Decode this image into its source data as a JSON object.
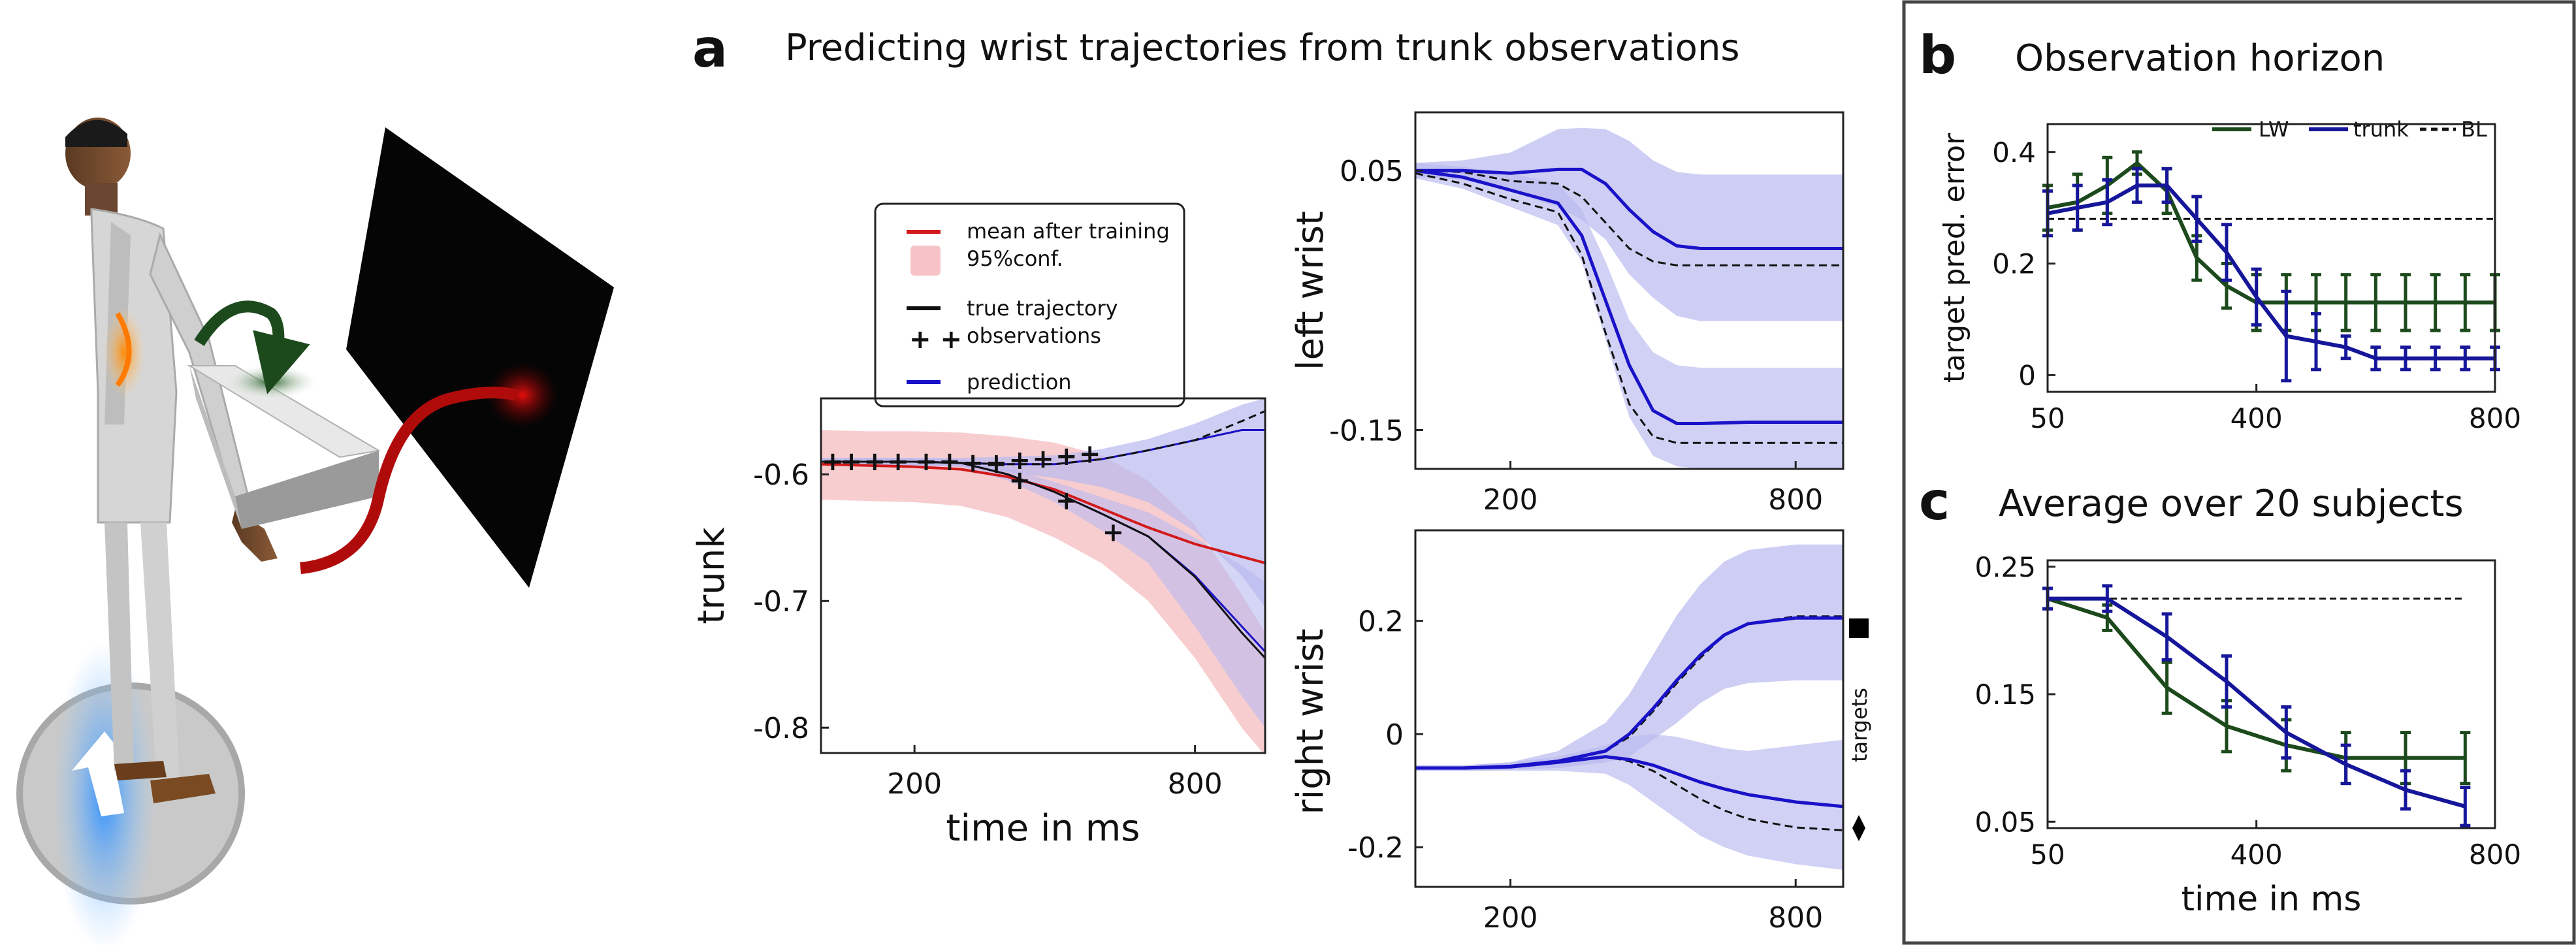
{
  "colors": {
    "prediction": "#1a12c8",
    "prediction_band": "#b9b9ef",
    "prior_mean": "#d21a1a",
    "prior_band": "#f6c4c8",
    "true": "#111111",
    "lw": "#1c4a1c",
    "trunk_series": "#16169a"
  },
  "panel_a": {
    "letter": "a",
    "title": "Predicting wrist trajectories from trunk observations",
    "legend": {
      "mean": "mean after training",
      "conf": "95%conf.",
      "true": "true trajectory",
      "obs": "observations",
      "pred": "prediction"
    },
    "targets_label": "targets"
  },
  "panel_b": {
    "letter": "b",
    "title": "Observation horizon",
    "ylabel": "target pred. error",
    "legend": [
      "LW",
      "trunk",
      "BL"
    ]
  },
  "panel_c": {
    "letter": "c",
    "title": "Average over 20 subjects",
    "xlabel": "time in ms"
  },
  "chart_data": [
    {
      "id": "trunk",
      "type": "line",
      "xlabel": "time in ms",
      "ylabel": "trunk",
      "xlim": [
        0,
        950
      ],
      "ylim": [
        -0.82,
        -0.54
      ],
      "xticks": [
        200,
        800
      ],
      "yticks": [
        -0.6,
        -0.7,
        -0.8
      ],
      "x": [
        0,
        100,
        200,
        300,
        400,
        500,
        600,
        700,
        800,
        900,
        950
      ],
      "series": [
        {
          "role": "prior_mean",
          "values": [
            -0.592,
            -0.593,
            -0.594,
            -0.596,
            -0.602,
            -0.612,
            -0.627,
            -0.642,
            -0.655,
            -0.665,
            -0.67
          ]
        },
        {
          "role": "prior_band_upper",
          "values": [
            -0.565,
            -0.566,
            -0.566,
            -0.567,
            -0.57,
            -0.575,
            -0.585,
            -0.605,
            -0.64,
            -0.695,
            -0.725
          ]
        },
        {
          "role": "prior_band_lower",
          "values": [
            -0.62,
            -0.621,
            -0.622,
            -0.625,
            -0.634,
            -0.65,
            -0.67,
            -0.7,
            -0.745,
            -0.8,
            -0.822
          ]
        },
        {
          "role": "true_upper",
          "values": [
            -0.59,
            -0.59,
            -0.59,
            -0.591,
            -0.592,
            -0.592,
            -0.588,
            -0.581,
            -0.573,
            -0.558,
            -0.55
          ]
        },
        {
          "role": "true_lower",
          "values": [
            -0.59,
            -0.59,
            -0.59,
            -0.591,
            -0.6,
            -0.614,
            -0.631,
            -0.649,
            -0.681,
            -0.725,
            -0.745
          ]
        },
        {
          "role": "pred_upper",
          "values": [
            -0.59,
            -0.59,
            -0.59,
            -0.591,
            -0.592,
            -0.592,
            -0.588,
            -0.581,
            -0.573,
            -0.565,
            -0.565
          ]
        },
        {
          "role": "pred_upper_band_hi",
          "values": [
            -0.587,
            -0.587,
            -0.587,
            -0.587,
            -0.586,
            -0.585,
            -0.58,
            -0.572,
            -0.56,
            -0.545,
            -0.54
          ]
        },
        {
          "role": "pred_upper_band_lo",
          "values": [
            -0.593,
            -0.593,
            -0.593,
            -0.594,
            -0.598,
            -0.603,
            -0.61,
            -0.622,
            -0.645,
            -0.68,
            -0.705
          ]
        },
        {
          "role": "pred_lower",
          "values": [
            -0.59,
            -0.59,
            -0.59,
            -0.591,
            -0.6,
            -0.614,
            -0.631,
            -0.649,
            -0.68,
            -0.72,
            -0.74
          ]
        },
        {
          "role": "pred_lower_band_hi",
          "values": [
            -0.587,
            -0.587,
            -0.587,
            -0.588,
            -0.595,
            -0.606,
            -0.618,
            -0.63,
            -0.65,
            -0.672,
            -0.685
          ]
        },
        {
          "role": "pred_lower_band_lo",
          "values": [
            -0.593,
            -0.593,
            -0.593,
            -0.594,
            -0.605,
            -0.622,
            -0.644,
            -0.67,
            -0.72,
            -0.775,
            -0.8
          ]
        }
      ],
      "observations": [
        {
          "x": [
            25,
            65,
            115,
            165,
            225,
            275,
            325,
            375,
            425,
            475,
            525,
            575
          ],
          "y": [
            -0.59,
            -0.59,
            -0.59,
            -0.59,
            -0.59,
            -0.59,
            -0.591,
            -0.591,
            -0.589,
            -0.588,
            -0.586,
            -0.584
          ]
        },
        {
          "x": [
            25,
            65,
            115,
            165,
            225,
            275,
            325,
            375,
            425,
            525,
            625
          ],
          "y": [
            -0.59,
            -0.59,
            -0.59,
            -0.59,
            -0.59,
            -0.59,
            -0.591,
            -0.592,
            -0.605,
            -0.621,
            -0.646
          ]
        }
      ]
    },
    {
      "id": "left_wrist",
      "type": "line",
      "ylabel": "left wrist",
      "xlim": [
        0,
        900
      ],
      "ylim": [
        -0.18,
        0.095
      ],
      "xticks": [
        200,
        800
      ],
      "yticks": [
        0.05,
        -0.15
      ],
      "yticklabels": [
        "0.05",
        "-0.15"
      ],
      "x": [
        0,
        100,
        200,
        300,
        350,
        400,
        450,
        500,
        550,
        600,
        700,
        800,
        900
      ],
      "series": [
        {
          "role": "pred_upper",
          "values": [
            0.05,
            0.05,
            0.048,
            0.051,
            0.051,
            0.04,
            0.02,
            0.003,
            -0.008,
            -0.01,
            -0.01,
            -0.01,
            -0.01
          ]
        },
        {
          "role": "pred_upper_band_hi",
          "values": [
            0.056,
            0.058,
            0.064,
            0.082,
            0.083,
            0.082,
            0.073,
            0.058,
            0.049,
            0.047,
            0.047,
            0.047,
            0.047
          ]
        },
        {
          "role": "pred_upper_band_lo",
          "values": [
            0.045,
            0.043,
            0.034,
            0.022,
            0.012,
            -0.003,
            -0.03,
            -0.048,
            -0.062,
            -0.066,
            -0.066,
            -0.066,
            -0.066
          ]
        },
        {
          "role": "true_upper",
          "values": [
            0.05,
            0.049,
            0.042,
            0.04,
            0.03,
            0.01,
            -0.01,
            -0.02,
            -0.023,
            -0.023,
            -0.023,
            -0.023,
            -0.023
          ]
        },
        {
          "role": "pred_lower",
          "values": [
            0.05,
            0.045,
            0.035,
            0.025,
            0.0,
            -0.05,
            -0.1,
            -0.135,
            -0.145,
            -0.145,
            -0.144,
            -0.144,
            -0.144
          ]
        },
        {
          "role": "pred_lower_band_hi",
          "values": [
            0.056,
            0.053,
            0.048,
            0.04,
            0.02,
            -0.02,
            -0.065,
            -0.09,
            -0.1,
            -0.102,
            -0.102,
            -0.102,
            -0.102
          ]
        },
        {
          "role": "pred_lower_band_lo",
          "values": [
            0.044,
            0.036,
            0.022,
            0.008,
            -0.02,
            -0.08,
            -0.14,
            -0.17,
            -0.178,
            -0.18,
            -0.18,
            -0.18,
            -0.18
          ]
        },
        {
          "role": "true_lower",
          "values": [
            0.048,
            0.04,
            0.028,
            0.018,
            -0.015,
            -0.075,
            -0.13,
            -0.155,
            -0.16,
            -0.16,
            -0.16,
            -0.16,
            -0.16
          ]
        }
      ]
    },
    {
      "id": "right_wrist",
      "type": "line",
      "xlabel": "",
      "ylabel": "right wrist",
      "xlim": [
        0,
        900
      ],
      "ylim": [
        -0.27,
        0.36
      ],
      "xticks": [
        200,
        800
      ],
      "yticks": [
        0.2,
        0,
        -0.2
      ],
      "x": [
        0,
        100,
        200,
        300,
        400,
        450,
        500,
        550,
        600,
        650,
        700,
        800,
        900
      ],
      "series": [
        {
          "role": "pred_upper",
          "values": [
            -0.06,
            -0.06,
            -0.057,
            -0.048,
            -0.03,
            0.0,
            0.045,
            0.095,
            0.14,
            0.175,
            0.195,
            0.205,
            0.205
          ]
        },
        {
          "role": "pred_upper_band_hi",
          "values": [
            -0.055,
            -0.055,
            -0.05,
            -0.03,
            0.02,
            0.07,
            0.14,
            0.21,
            0.265,
            0.305,
            0.325,
            0.335,
            0.335
          ]
        },
        {
          "role": "pred_upper_band_lo",
          "values": [
            -0.065,
            -0.065,
            -0.063,
            -0.06,
            -0.05,
            -0.04,
            -0.01,
            0.02,
            0.055,
            0.08,
            0.09,
            0.095,
            0.095
          ]
        },
        {
          "role": "true_upper",
          "values": [
            -0.06,
            -0.06,
            -0.058,
            -0.05,
            -0.03,
            -0.005,
            0.04,
            0.09,
            0.135,
            0.175,
            0.195,
            0.208,
            0.208
          ]
        },
        {
          "role": "pred_lower",
          "values": [
            -0.06,
            -0.06,
            -0.058,
            -0.05,
            -0.04,
            -0.045,
            -0.055,
            -0.07,
            -0.085,
            -0.097,
            -0.107,
            -0.12,
            -0.128
          ]
        },
        {
          "role": "pred_lower_band_hi",
          "values": [
            -0.055,
            -0.055,
            -0.05,
            -0.04,
            -0.02,
            -0.005,
            0.0,
            -0.005,
            -0.015,
            -0.025,
            -0.03,
            -0.02,
            -0.01
          ]
        },
        {
          "role": "pred_lower_band_lo",
          "values": [
            -0.065,
            -0.065,
            -0.065,
            -0.065,
            -0.07,
            -0.09,
            -0.12,
            -0.15,
            -0.18,
            -0.2,
            -0.215,
            -0.23,
            -0.24
          ]
        },
        {
          "role": "true_lower",
          "values": [
            -0.06,
            -0.06,
            -0.058,
            -0.05,
            -0.04,
            -0.048,
            -0.065,
            -0.09,
            -0.115,
            -0.135,
            -0.15,
            -0.165,
            -0.17
          ]
        }
      ]
    },
    {
      "id": "observation_horizon",
      "type": "line",
      "ylabel": "target pred. error",
      "xlim": [
        50,
        800
      ],
      "ylim": [
        -0.03,
        0.45
      ],
      "xticks": [
        50,
        400,
        800
      ],
      "yticks": [
        0,
        0.2,
        0.4
      ],
      "x": [
        50,
        100,
        150,
        200,
        250,
        300,
        350,
        400,
        450,
        500,
        550,
        600,
        650,
        700,
        750,
        800
      ],
      "series": [
        {
          "name": "LW",
          "values": [
            0.3,
            0.31,
            0.34,
            0.38,
            0.33,
            0.21,
            0.16,
            0.13,
            0.13,
            0.13,
            0.13,
            0.13,
            0.13,
            0.13,
            0.13,
            0.13
          ],
          "err": [
            0.04,
            0.05,
            0.05,
            0.02,
            0.04,
            0.04,
            0.04,
            0.05,
            0.05,
            0.05,
            0.05,
            0.05,
            0.05,
            0.05,
            0.05,
            0.05
          ]
        },
        {
          "name": "trunk",
          "values": [
            0.29,
            0.3,
            0.31,
            0.34,
            0.34,
            0.28,
            0.22,
            0.14,
            0.07,
            0.06,
            0.05,
            0.03,
            0.03,
            0.03,
            0.03,
            0.03
          ],
          "err": [
            0.04,
            0.04,
            0.04,
            0.03,
            0.03,
            0.04,
            0.05,
            0.05,
            0.08,
            0.05,
            0.02,
            0.02,
            0.02,
            0.02,
            0.02,
            0.02
          ]
        },
        {
          "name": "BL",
          "values": [
            0.28,
            0.28,
            0.28,
            0.28,
            0.28,
            0.28,
            0.28,
            0.28,
            0.28,
            0.28,
            0.28,
            0.28,
            0.28,
            0.28,
            0.28,
            0.28
          ]
        }
      ]
    },
    {
      "id": "average_20_subjects",
      "type": "line",
      "xlabel": "time in ms",
      "xlim": [
        50,
        800
      ],
      "ylim": [
        0.045,
        0.255
      ],
      "xticks": [
        50,
        400,
        800
      ],
      "yticks": [
        0.25,
        0.15,
        0.05
      ],
      "x": [
        50,
        150,
        250,
        350,
        450,
        550,
        650,
        750
      ],
      "series": [
        {
          "name": "LW",
          "values": [
            0.225,
            0.21,
            0.155,
            0.125,
            0.11,
            0.1,
            0.1,
            0.1
          ],
          "err": [
            0.008,
            0.01,
            0.02,
            0.02,
            0.02,
            0.02,
            0.02,
            0.02
          ]
        },
        {
          "name": "trunk",
          "values": [
            0.225,
            0.225,
            0.195,
            0.16,
            0.12,
            0.095,
            0.075,
            0.062
          ],
          "err": [
            0.008,
            0.01,
            0.018,
            0.02,
            0.02,
            0.015,
            0.015,
            0.015
          ]
        },
        {
          "name": "BL",
          "values": [
            0.225,
            0.225,
            0.225,
            0.225,
            0.225,
            0.225,
            0.225,
            0.225
          ]
        }
      ]
    }
  ]
}
